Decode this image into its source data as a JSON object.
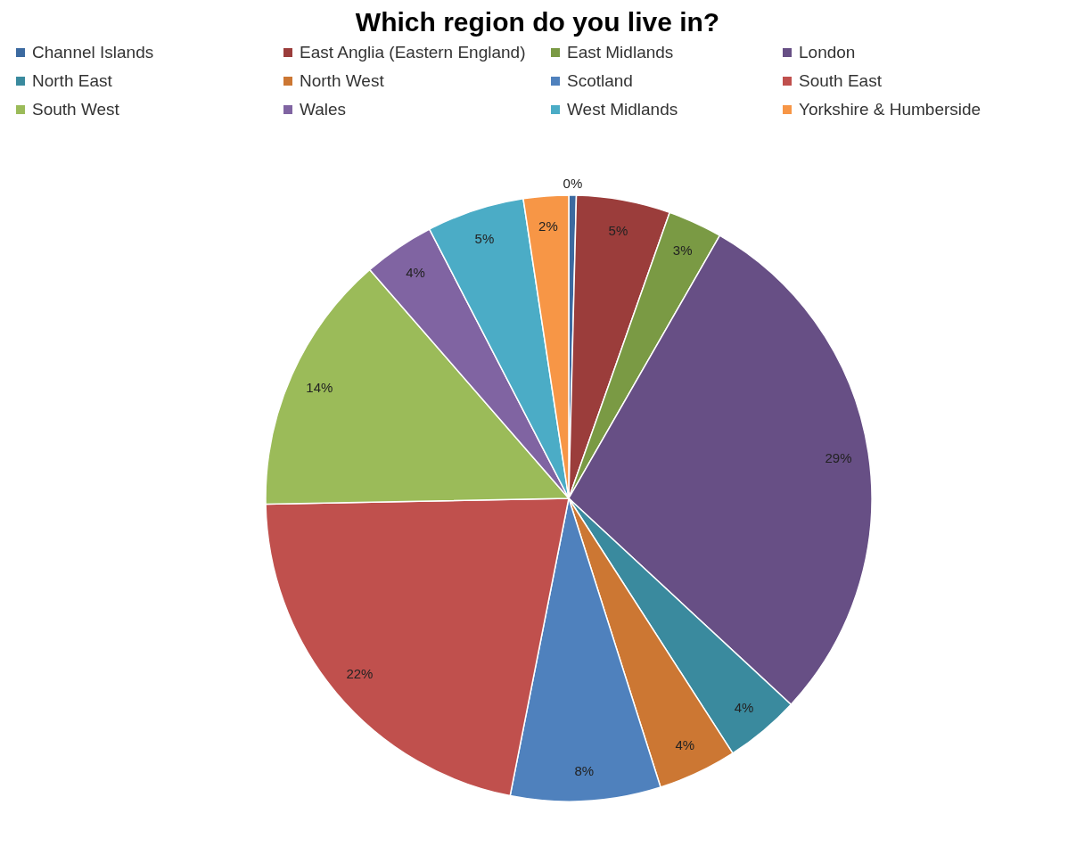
{
  "chart_data": {
    "type": "pie",
    "title": "Which region do you live in?",
    "categories": [
      "Channel Islands",
      "East Anglia (Eastern England)",
      "East Midlands",
      "London",
      "North East",
      "North West",
      "Scotland",
      "South East",
      "South West",
      "Wales",
      "West Midlands",
      "Yorkshire & Humberside"
    ],
    "values": [
      0.4,
      5.0,
      2.9,
      28.6,
      4.0,
      4.2,
      8.0,
      21.6,
      13.9,
      3.8,
      5.2,
      2.4
    ],
    "value_labels": [
      "0%",
      "5%",
      "3%",
      "29%",
      "4%",
      "4%",
      "8%",
      "22%",
      "14%",
      "4%",
      "5%",
      "2%"
    ],
    "colors": [
      "#3c6aa0",
      "#9b3d3b",
      "#7a9a44",
      "#674f85",
      "#3a8a9e",
      "#cc7733",
      "#4f81bd",
      "#c0504d",
      "#9bbb59",
      "#8064a2",
      "#4bacc6",
      "#f79646"
    ],
    "legend": "top"
  }
}
